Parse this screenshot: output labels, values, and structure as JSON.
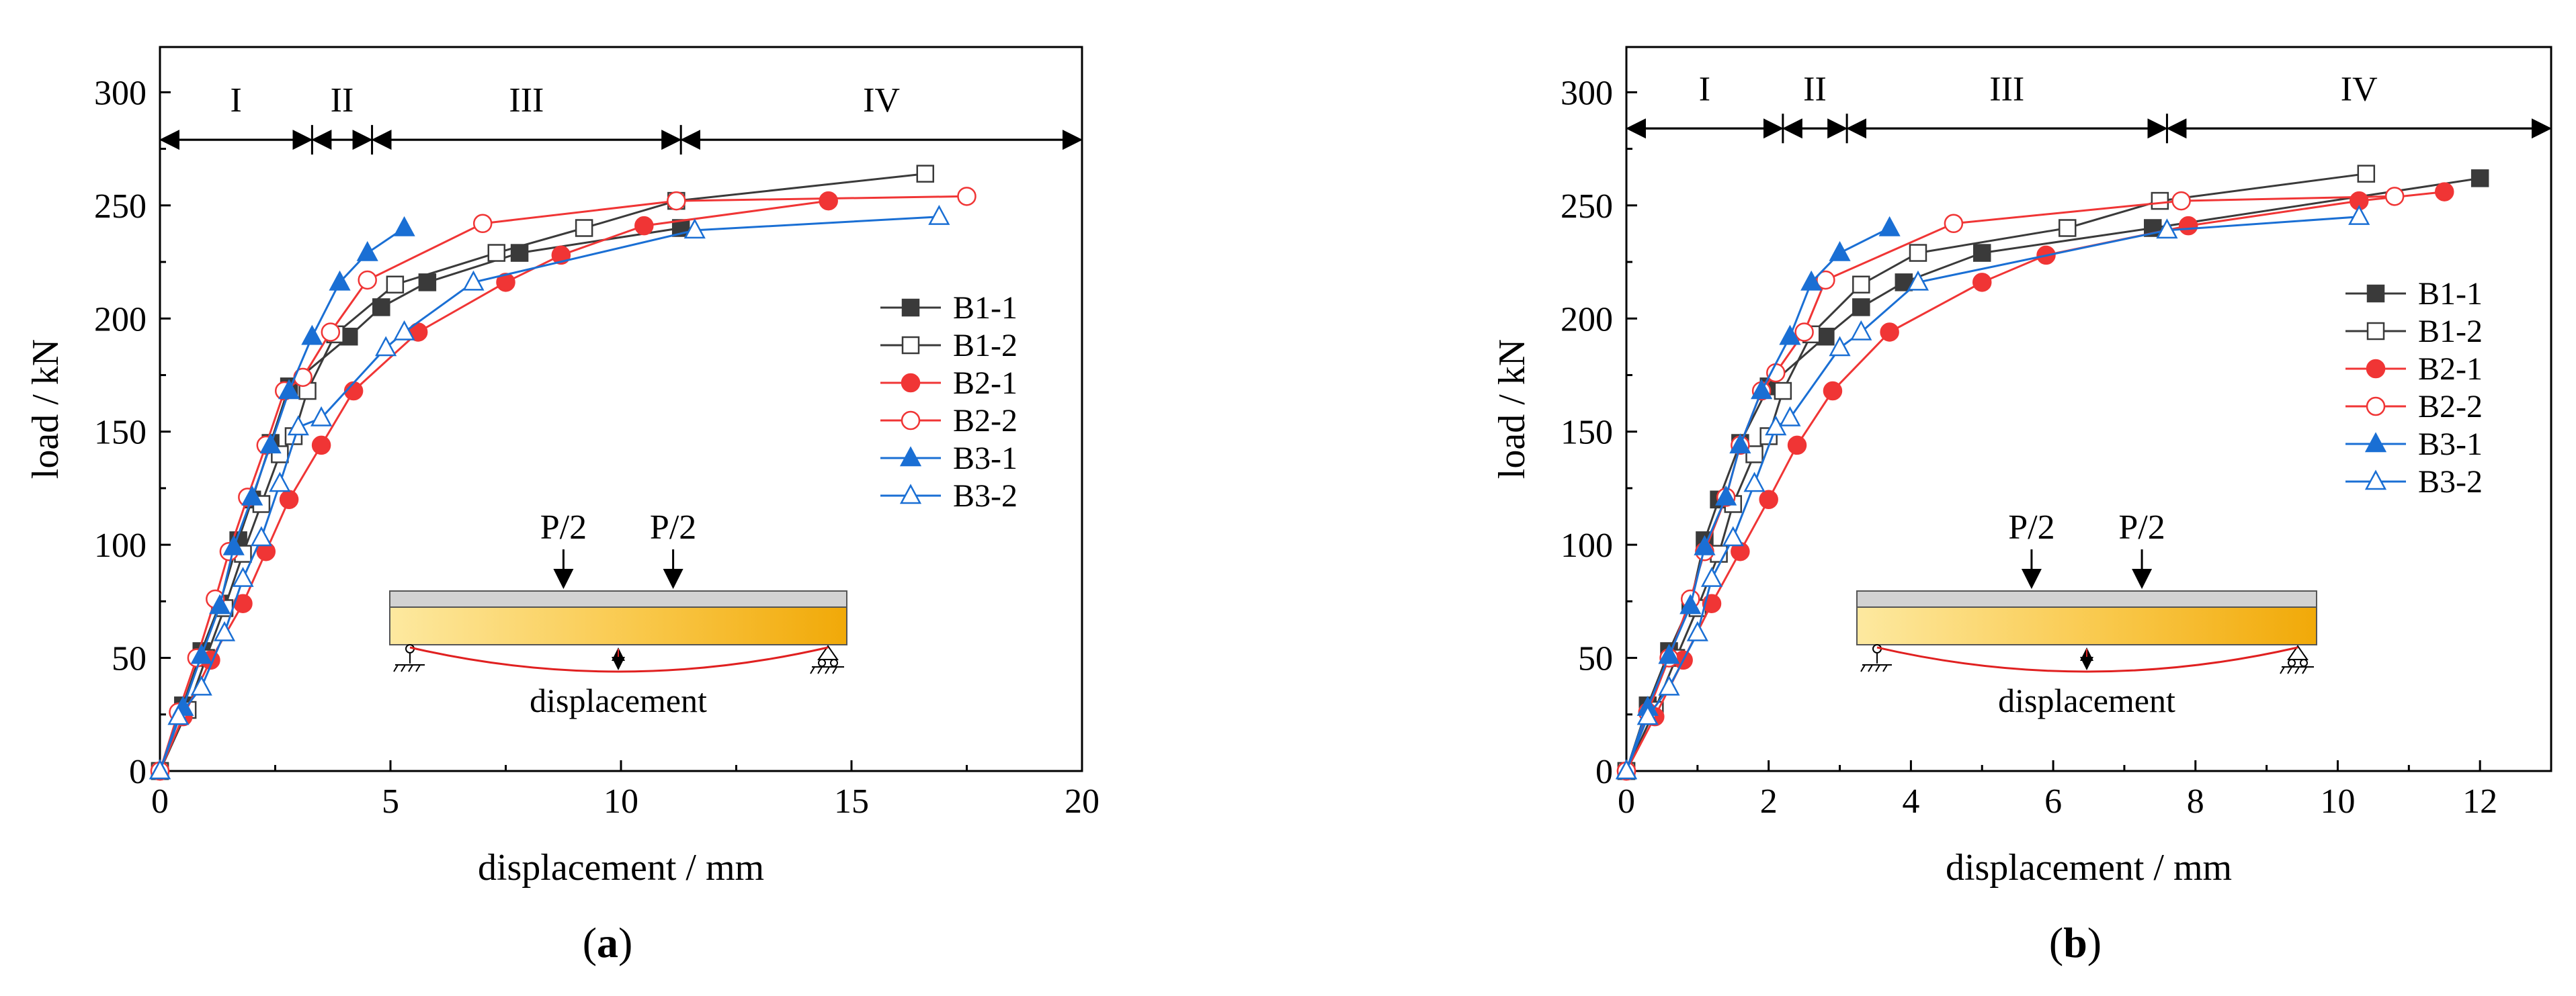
{
  "chart_data": [
    {
      "type": "line",
      "panel_label": "(a)",
      "xlabel": "displacement  / mm",
      "ylabel": "load / kN",
      "xlim": [
        0,
        20
      ],
      "ylim": [
        0,
        320
      ],
      "xticks": [
        0,
        5,
        10,
        15,
        20
      ],
      "yticks": [
        0,
        50,
        100,
        150,
        200,
        250,
        300
      ],
      "grid": false,
      "legend_position": "right",
      "stages": {
        "labels": [
          "I",
          "II",
          "III",
          "IV"
        ],
        "boundaries": [
          0,
          3.3,
          4.6,
          11.3,
          20
        ],
        "load_level": 279
      },
      "schematic": {
        "load_labels": [
          "P/2",
          "P/2"
        ],
        "caption": "displacement"
      },
      "series": [
        {
          "name": "B1-1",
          "color": "#3a3a3a",
          "marker": "square",
          "filled": true,
          "x": [
            0,
            0.5,
            0.9,
            1.3,
            1.7,
            2.0,
            2.4,
            2.8,
            4.1,
            4.8,
            5.8,
            7.8,
            11.3
          ],
          "y": [
            0,
            29,
            53,
            74,
            102,
            120,
            145,
            170,
            192,
            205,
            216,
            229,
            240
          ]
        },
        {
          "name": "B1-2",
          "color": "#3a3a3a",
          "marker": "square",
          "filled": false,
          "x": [
            0,
            0.6,
            1.0,
            1.4,
            1.8,
            2.2,
            2.6,
            2.9,
            3.2,
            3.8,
            5.1,
            7.3,
            9.2,
            11.2,
            16.6
          ],
          "y": [
            0,
            27,
            50,
            72,
            96,
            118,
            140,
            148,
            168,
            193,
            215,
            229,
            240,
            252,
            264
          ]
        },
        {
          "name": "B2-1",
          "color": "#f03535",
          "marker": "circle",
          "filled": true,
          "x": [
            0,
            0.5,
            1.1,
            1.8,
            2.3,
            2.8,
            3.5,
            4.2,
            5.6,
            7.5,
            8.7,
            10.5,
            14.5
          ],
          "y": [
            0,
            24,
            49,
            74,
            97,
            120,
            144,
            168,
            194,
            216,
            228,
            241,
            252
          ]
        },
        {
          "name": "B2-2",
          "color": "#f03535",
          "marker": "circle",
          "filled": false,
          "x": [
            0,
            0.4,
            0.8,
            1.2,
            1.5,
            1.9,
            2.3,
            2.7,
            3.1,
            3.7,
            4.5,
            7.0,
            11.2,
            17.5
          ],
          "y": [
            0,
            26,
            50,
            76,
            97,
            121,
            144,
            168,
            174,
            194,
            217,
            242,
            252,
            254
          ]
        },
        {
          "name": "B3-1",
          "color": "#1a6fd4",
          "marker": "triangle",
          "filled": true,
          "x": [
            0,
            0.5,
            0.9,
            1.3,
            1.6,
            2.0,
            2.4,
            2.8,
            3.3,
            3.9,
            4.5,
            5.3
          ],
          "y": [
            0,
            28,
            51,
            73,
            99,
            121,
            144,
            168,
            192,
            216,
            229,
            240
          ]
        },
        {
          "name": "B3-2",
          "color": "#1a6fd4",
          "marker": "triangle",
          "filled": false,
          "x": [
            0,
            0.4,
            0.9,
            1.4,
            1.8,
            2.2,
            2.6,
            3.0,
            3.5,
            4.9,
            5.3,
            6.8,
            11.6,
            16.9
          ],
          "y": [
            0,
            24,
            37,
            61,
            85,
            103,
            127,
            152,
            156,
            187,
            194,
            216,
            239,
            245
          ]
        }
      ]
    },
    {
      "type": "line",
      "panel_label": "(b)",
      "xlabel": "displacement / mm",
      "ylabel": "load / kN",
      "xlim": [
        0,
        13
      ],
      "ylim": [
        0,
        320
      ],
      "xticks": [
        0,
        2,
        4,
        6,
        8,
        10,
        12
      ],
      "yticks": [
        0,
        50,
        100,
        150,
        200,
        250,
        300
      ],
      "grid": false,
      "legend_position": "right",
      "stages": {
        "labels": [
          "I",
          "II",
          "III",
          "IV"
        ],
        "boundaries": [
          0,
          2.2,
          3.1,
          7.6,
          13
        ],
        "load_level": 284
      },
      "schematic": {
        "load_labels": [
          "P/2",
          "P/2"
        ],
        "caption": "displacement"
      },
      "series": [
        {
          "name": "B1-1",
          "color": "#3a3a3a",
          "marker": "square",
          "filled": true,
          "x": [
            0,
            0.3,
            0.6,
            0.9,
            1.1,
            1.3,
            1.6,
            2.0,
            2.8,
            3.3,
            3.9,
            5.0,
            7.4,
            12.0
          ],
          "y": [
            0,
            29,
            53,
            74,
            102,
            120,
            145,
            170,
            192,
            205,
            216,
            229,
            240,
            262
          ]
        },
        {
          "name": "B1-2",
          "color": "#3a3a3a",
          "marker": "square",
          "filled": false,
          "x": [
            0,
            0.4,
            0.7,
            1.0,
            1.3,
            1.5,
            1.8,
            2.0,
            2.2,
            2.6,
            3.3,
            4.1,
            6.2,
            7.5,
            10.4
          ],
          "y": [
            0,
            27,
            50,
            72,
            96,
            118,
            140,
            148,
            168,
            193,
            215,
            229,
            240,
            252,
            264
          ]
        },
        {
          "name": "B2-1",
          "color": "#f03535",
          "marker": "circle",
          "filled": true,
          "x": [
            0,
            0.4,
            0.8,
            1.2,
            1.6,
            2.0,
            2.4,
            2.9,
            3.7,
            5.0,
            5.9,
            7.9,
            10.3,
            11.5
          ],
          "y": [
            0,
            24,
            49,
            74,
            97,
            120,
            144,
            168,
            194,
            216,
            228,
            241,
            252,
            256
          ]
        },
        {
          "name": "B2-2",
          "color": "#f03535",
          "marker": "circle",
          "filled": false,
          "x": [
            0,
            0.3,
            0.6,
            0.9,
            1.1,
            1.4,
            1.6,
            1.9,
            2.1,
            2.5,
            2.8,
            4.6,
            7.8,
            10.8
          ],
          "y": [
            0,
            26,
            50,
            76,
            97,
            121,
            144,
            168,
            176,
            194,
            217,
            242,
            252,
            254
          ]
        },
        {
          "name": "B3-1",
          "color": "#1a6fd4",
          "marker": "triangle",
          "filled": true,
          "x": [
            0,
            0.3,
            0.6,
            0.9,
            1.1,
            1.4,
            1.6,
            1.9,
            2.3,
            2.6,
            3.0,
            3.7
          ],
          "y": [
            0,
            28,
            51,
            73,
            99,
            121,
            144,
            168,
            192,
            216,
            229,
            240
          ]
        },
        {
          "name": "B3-2",
          "color": "#1a6fd4",
          "marker": "triangle",
          "filled": false,
          "x": [
            0,
            0.3,
            0.6,
            1.0,
            1.2,
            1.5,
            1.8,
            2.1,
            2.3,
            3.0,
            3.3,
            4.1,
            7.6,
            10.3
          ],
          "y": [
            0,
            24,
            37,
            61,
            85,
            103,
            127,
            152,
            156,
            187,
            194,
            216,
            239,
            245
          ]
        }
      ]
    }
  ]
}
